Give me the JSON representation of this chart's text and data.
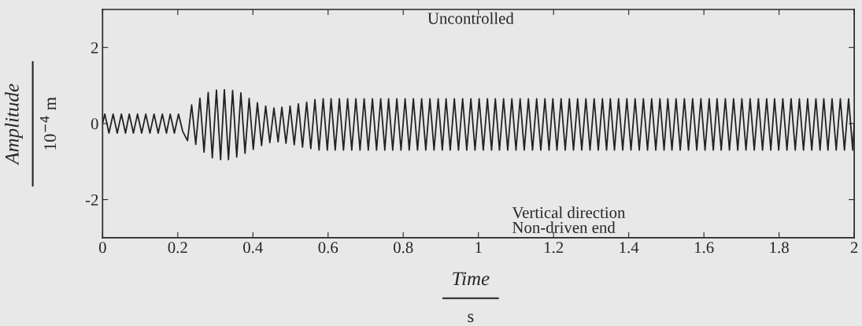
{
  "chart_data": {
    "type": "line",
    "xlabel": "Time\ns",
    "ylabel": "Amplitude\n10$^{−4}$ m",
    "annotations": [
      "Uncontrolled",
      "Vertical direction\nNon-driven end"
    ],
    "xlim": [
      0,
      2
    ],
    "ylim": [
      -3,
      3
    ],
    "xticks": [
      0,
      0.2,
      0.4,
      0.6,
      0.8,
      1,
      1.2,
      1.4,
      1.6,
      1.8,
      2
    ],
    "yticks": [
      -2,
      0,
      2
    ],
    "grid": false,
    "legend": false,
    "series": [
      {
        "color": "#222222",
        "x": [
          0,
          0.006,
          0.017,
          0.028,
          0.039,
          0.05,
          0.061,
          0.071,
          0.082,
          0.093,
          0.104,
          0.115,
          0.126,
          0.137,
          0.148,
          0.159,
          0.17,
          0.18,
          0.191,
          0.202,
          0.213,
          0.226,
          0.237,
          0.248,
          0.259,
          0.27,
          0.281,
          0.292,
          0.303,
          0.314,
          0.324,
          0.335,
          0.346,
          0.357,
          0.368,
          0.379,
          0.39,
          0.401,
          0.412,
          0.423,
          0.434,
          0.445,
          0.456,
          0.467,
          0.477,
          0.488,
          0.499,
          0.51,
          0.521,
          0.532,
          0.543,
          0.554,
          0.565,
          0.576,
          0.587,
          0.598,
          0.608,
          0.619,
          0.63,
          0.641,
          0.652,
          0.663,
          0.674,
          0.685,
          0.696,
          0.707,
          0.718,
          0.729,
          0.74,
          0.751,
          0.761,
          0.772,
          0.783,
          0.794,
          0.805,
          0.816,
          0.827,
          0.838,
          0.849,
          0.86,
          0.871,
          0.882,
          0.893,
          0.904,
          0.914,
          0.925,
          0.936,
          0.947,
          0.958,
          0.969,
          0.98,
          0.991,
          1.002,
          1.013,
          1.024,
          1.035,
          1.045,
          1.056,
          1.067,
          1.078,
          1.089,
          1.1,
          1.111,
          1.122,
          1.133,
          1.144,
          1.155,
          1.166,
          1.177,
          1.188,
          1.198,
          1.209,
          1.22,
          1.231,
          1.242,
          1.253,
          1.264,
          1.275,
          1.286,
          1.297,
          1.308,
          1.319,
          1.33,
          1.341,
          1.351,
          1.362,
          1.373,
          1.384,
          1.395,
          1.406,
          1.417,
          1.428,
          1.439,
          1.45,
          1.461,
          1.472,
          1.483,
          1.494,
          1.504,
          1.515,
          1.526,
          1.537,
          1.548,
          1.559,
          1.57,
          1.581,
          1.592,
          1.603,
          1.614,
          1.625,
          1.635,
          1.646,
          1.657,
          1.668,
          1.679,
          1.69,
          1.701,
          1.712,
          1.723,
          1.734,
          1.745,
          1.756,
          1.767,
          1.778,
          1.788,
          1.799,
          1.81,
          1.821,
          1.832,
          1.843,
          1.854,
          1.865,
          1.876,
          1.887,
          1.898,
          1.909,
          1.919,
          1.93,
          1.941,
          1.952,
          1.963,
          1.974,
          1.985,
          1.996,
          2
        ],
        "values": [
          0,
          0.25,
          -0.25,
          0.25,
          -0.25,
          0.25,
          -0.25,
          0.25,
          -0.25,
          0.25,
          -0.25,
          0.25,
          -0.25,
          0.25,
          -0.25,
          0.25,
          -0.25,
          0.25,
          -0.25,
          0.25,
          -0.2,
          -0.45,
          0.49,
          -0.55,
          0.67,
          -0.75,
          0.82,
          -0.9,
          0.88,
          -0.95,
          0.89,
          -0.95,
          0.87,
          -0.88,
          0.81,
          -0.78,
          0.66,
          -0.68,
          0.55,
          -0.58,
          0.46,
          -0.5,
          0.41,
          -0.48,
          0.43,
          -0.52,
          0.46,
          -0.56,
          0.52,
          -0.62,
          0.56,
          -0.66,
          0.63,
          -0.7,
          0.65,
          -0.7,
          0.65,
          -0.7,
          0.65,
          -0.7,
          0.65,
          -0.7,
          0.65,
          -0.7,
          0.65,
          -0.7,
          0.65,
          -0.7,
          0.65,
          -0.7,
          0.65,
          -0.7,
          0.65,
          -0.7,
          0.65,
          -0.7,
          0.65,
          -0.7,
          0.65,
          -0.7,
          0.65,
          -0.7,
          0.65,
          -0.7,
          0.65,
          -0.7,
          0.65,
          -0.7,
          0.65,
          -0.7,
          0.65,
          -0.7,
          0.65,
          -0.7,
          0.65,
          -0.7,
          0.65,
          -0.7,
          0.65,
          -0.7,
          0.65,
          -0.7,
          0.65,
          -0.7,
          0.65,
          -0.7,
          0.65,
          -0.7,
          0.65,
          -0.7,
          0.65,
          -0.7,
          0.65,
          -0.7,
          0.65,
          -0.7,
          0.65,
          -0.7,
          0.65,
          -0.7,
          0.65,
          -0.7,
          0.65,
          -0.7,
          0.65,
          -0.7,
          0.65,
          -0.7,
          0.65,
          -0.7,
          0.65,
          -0.7,
          0.65,
          -0.7,
          0.65,
          -0.7,
          0.65,
          -0.7,
          0.65,
          -0.7,
          0.65,
          -0.7,
          0.65,
          -0.7,
          0.65,
          -0.7,
          0.65,
          -0.7,
          0.65,
          -0.7,
          0.65,
          -0.7,
          0.65,
          -0.7,
          0.65,
          -0.7,
          0.65,
          -0.7,
          0.65,
          -0.7,
          0.65,
          -0.7,
          0.65,
          -0.7,
          0.65,
          -0.7,
          0.65,
          -0.7,
          0.65,
          -0.7,
          0.65,
          -0.7,
          0.65,
          -0.7,
          0.65,
          -0.7,
          0.65,
          -0.7,
          0.65,
          -0.7,
          0.65,
          -0.7,
          0.65,
          -0.7,
          0
        ]
      }
    ]
  }
}
